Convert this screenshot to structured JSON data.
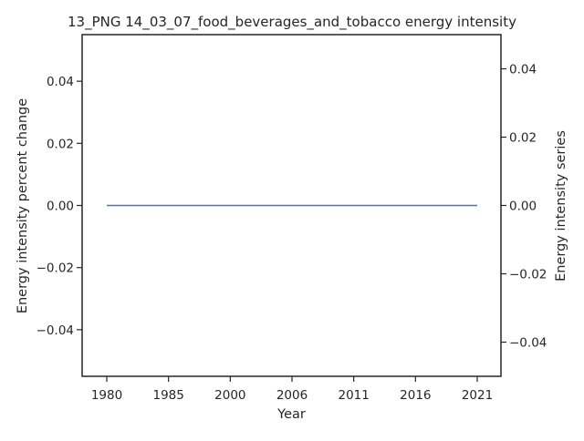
{
  "chart_data": {
    "type": "line",
    "title": "13_PNG 14_03_07_food_beverages_and_tobacco energy intensity",
    "xlabel": "Year",
    "ylabel_left": "Energy intensity percent change",
    "ylabel_right": "Energy intensity series",
    "x_categories": [
      "1980",
      "1985",
      "2000",
      "2006",
      "2011",
      "2016",
      "2021"
    ],
    "series": [
      {
        "values": [
          0,
          0,
          0,
          0,
          0,
          0,
          0
        ],
        "color": "#4c72b0"
      }
    ],
    "ylim_left": [
      -0.055,
      0.055
    ],
    "yticks_left": [
      "0.04",
      "0.02",
      "0.00",
      "−0.02",
      "−0.04"
    ],
    "yticks_left_values": [
      0.04,
      0.02,
      0.0,
      -0.02,
      -0.04
    ],
    "ylim_right": [
      -0.05,
      0.05
    ],
    "yticks_right": [
      "0.04",
      "0.02",
      "0.00",
      "−0.02",
      "−0.04"
    ],
    "yticks_right_values": [
      0.04,
      0.02,
      0.0,
      -0.02,
      -0.04
    ],
    "grid": false,
    "legend": "none"
  }
}
